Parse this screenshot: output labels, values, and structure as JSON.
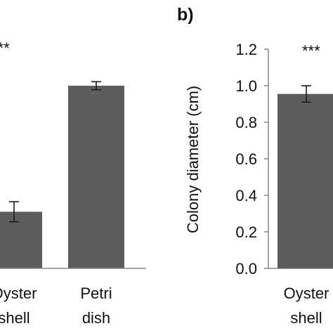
{
  "chart_data": [
    {
      "type": "bar",
      "panel_label": "",
      "title": "",
      "xlabel": "",
      "ylabel": "",
      "categories": [
        [
          "Oyster",
          "shell"
        ],
        [
          "Petri",
          "dish"
        ]
      ],
      "values": [
        0.31,
        1.0
      ],
      "errors": [
        0.055,
        0.022
      ],
      "ylim": [
        0,
        1.2
      ],
      "significance": "***",
      "grid": false,
      "legend": "none"
    },
    {
      "type": "bar",
      "panel_label": "b)",
      "title": "",
      "xlabel": "",
      "ylabel": "Colony diameter (cm)",
      "yticks": [
        "0.0",
        "0.2",
        "0.4",
        "0.6",
        "0.8",
        "1.0",
        "1.2"
      ],
      "categories": [
        [
          "Oyster",
          "shell"
        ]
      ],
      "values": [
        0.955
      ],
      "errors": [
        0.045
      ],
      "ylim": [
        0,
        1.2
      ],
      "significance": "***",
      "grid": false,
      "legend": "none"
    }
  ],
  "colors": {
    "bar": "#5d5d5d",
    "axis": "#888888",
    "error_bar": "#1a1a1a"
  }
}
